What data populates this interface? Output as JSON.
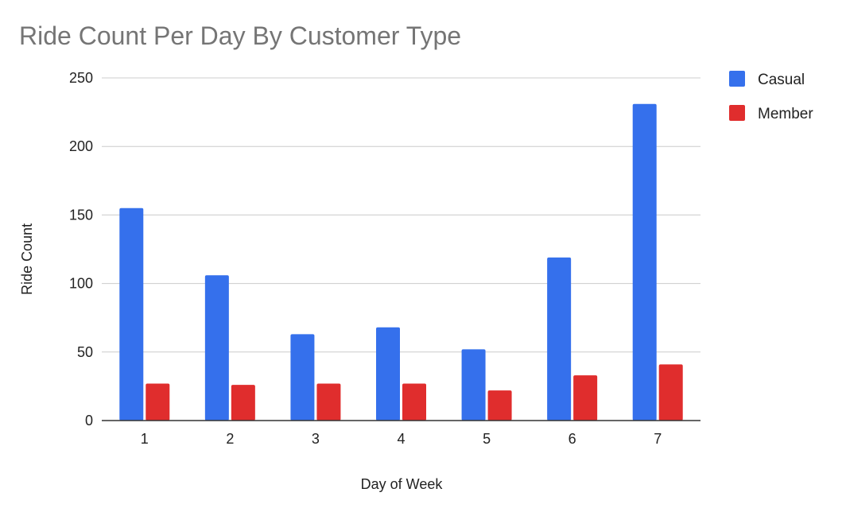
{
  "chart_data": {
    "type": "bar",
    "title": "Ride Count Per Day By Customer Type",
    "xlabel": "Day of Week",
    "ylabel": "Ride Count",
    "categories": [
      "1",
      "2",
      "3",
      "4",
      "5",
      "6",
      "7"
    ],
    "series": [
      {
        "name": "Casual",
        "color": "#3570EC",
        "values": [
          155,
          106,
          63,
          68,
          52,
          119,
          231
        ]
      },
      {
        "name": "Member",
        "color": "#E02D2D",
        "values": [
          27,
          26,
          27,
          27,
          22,
          33,
          41
        ]
      }
    ],
    "ylim": [
      0,
      250
    ],
    "yticks": [
      0,
      50,
      100,
      150,
      200,
      250
    ],
    "grid": true,
    "legend": "right"
  }
}
